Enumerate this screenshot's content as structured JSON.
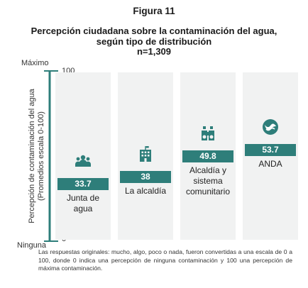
{
  "figure": {
    "number": "Figura 11",
    "title_line1": "Percepción ciudadana sobre la contaminación del agua,",
    "title_line2": "según tipo de distribución",
    "sample": "n=1,309"
  },
  "axis": {
    "top_label": "Máximo",
    "bottom_label": "Ninguna",
    "tick_max": "100",
    "tick_min": "0",
    "ylabel_line1": "Percepción de contaminación del agua",
    "ylabel_line2": "(Promedios escala 0-100)"
  },
  "chart_data": {
    "type": "bar",
    "title": "Percepción ciudadana sobre la contaminación del agua, según tipo de distribución",
    "ylabel": "Percepción de contaminación del agua (Promedios escala 0-100)",
    "ylim": [
      0,
      100
    ],
    "categories": [
      "Junta de agua",
      "La alcaldía",
      "Alcaldía y sistema comunitario",
      "ANDA"
    ],
    "values": [
      33.7,
      38,
      49.8,
      53.7
    ],
    "value_labels": [
      "33.7",
      "38",
      "49.8",
      "53.7"
    ],
    "category_lines": [
      [
        "Junta de",
        "agua"
      ],
      [
        "La alcaldía"
      ],
      [
        "Alcaldía y",
        "sistema",
        "comunitario"
      ],
      [
        "ANDA"
      ]
    ],
    "icons": [
      "group-icon",
      "building-icon",
      "binoculars-icon",
      "anda-logo-icon"
    ],
    "bar_color": "#2e7e7a",
    "axis_color": "#2e7e7a",
    "column_bg_color": "#f1f2f2"
  },
  "footnote": "Las respuestas originales: mucho, algo, poco o nada, fueron convertidas a una escala de 0 a 100, donde 0 indica una percepción de ninguna contaminación y 100 una percepción de máxima contaminación."
}
